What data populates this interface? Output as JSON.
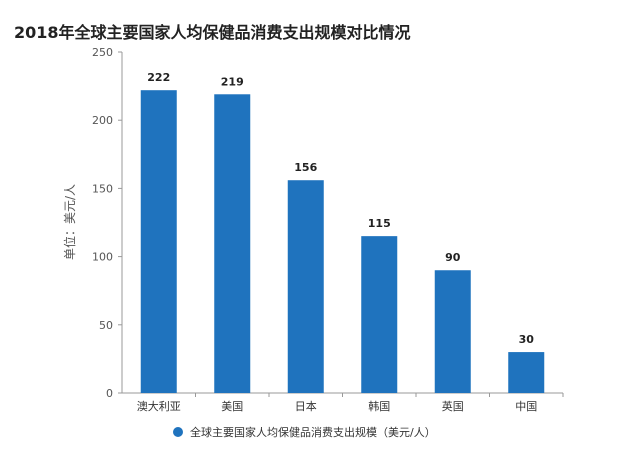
{
  "chart_data": {
    "type": "bar",
    "title": "2018年全球主要国家人均保健品消费支出规模对比情况",
    "ylabel": "单位：美元/人",
    "xlabel": "",
    "categories": [
      "澳大利亚",
      "美国",
      "日本",
      "韩国",
      "英国",
      "中国"
    ],
    "series": [
      {
        "name": "全球主要国家人均保健品消费支出规模（美元/人）",
        "values": [
          222,
          219,
          156,
          115,
          90,
          30
        ]
      }
    ],
    "ylim": [
      0,
      250
    ],
    "yticks": [
      0,
      50,
      100,
      150,
      200,
      250
    ],
    "grid": false,
    "legend_position": "bottom",
    "colors": {
      "bar": "#1f73be",
      "axis": "#999999",
      "text": "#333333"
    }
  }
}
